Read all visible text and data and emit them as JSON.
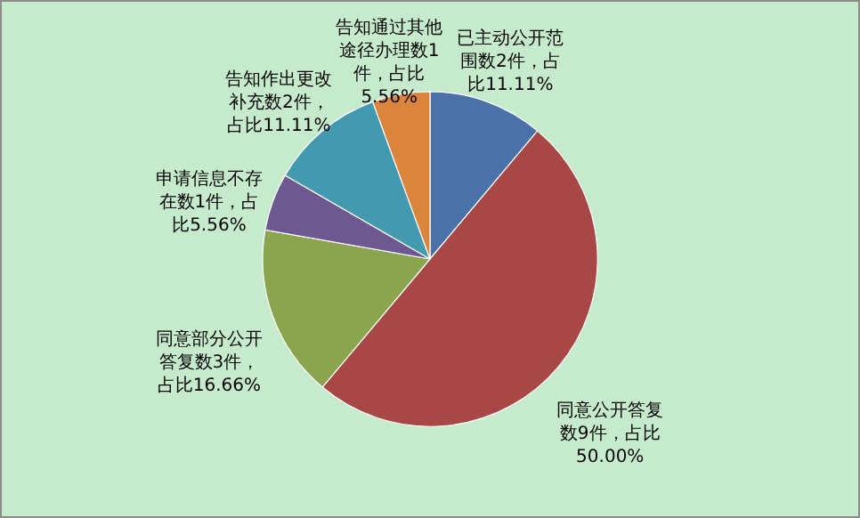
{
  "chart_data": {
    "type": "pie",
    "categories": [
      "已主动公开范围数2件，占比11.11%",
      "同意公开答复数9件，占比50.00%",
      "同意部分公开答复数3件，占比16.66%",
      "申请信息不存在数1件，占比5.56%",
      "告知作出更改补充数2件，占比11.11%",
      "告知通过其他途径办理数1件，占比5.56%"
    ],
    "values": [
      2,
      9,
      3,
      1,
      2,
      1
    ],
    "colors": [
      "#4a72a8",
      "#a84846",
      "#8aa54e",
      "#6e5892",
      "#4299b0",
      "#db843c"
    ]
  }
}
